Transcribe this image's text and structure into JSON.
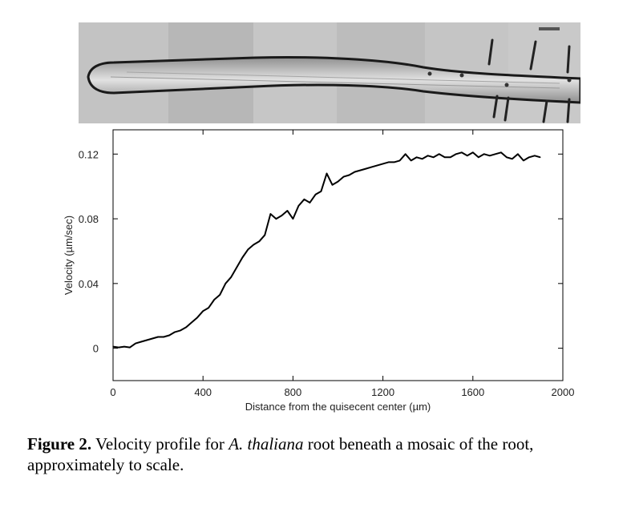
{
  "figure": {
    "label": "Figure 2.",
    "caption_parts": [
      {
        "text": " Velocity profile for ",
        "style": "normal"
      },
      {
        "text": "A. thaliana",
        "style": "italic"
      },
      {
        "text": " root beneath a mosaic of the root, approximately to scale.",
        "style": "normal"
      }
    ]
  },
  "chart_data": {
    "type": "line",
    "xlabel": "Distance from the quisecent center (µm)",
    "ylabel": "Velocity (µm/sec)",
    "xlim": [
      0,
      2000
    ],
    "ylim": [
      -0.02,
      0.135
    ],
    "xticks": [
      0,
      400,
      800,
      1200,
      1600,
      2000
    ],
    "xtick_labels": [
      "0",
      "400",
      "800",
      "1200",
      "1600",
      "2000"
    ],
    "yticks": [
      0,
      0.04,
      0.08,
      0.12
    ],
    "ytick_labels": [
      "0",
      "0.04",
      "0.08",
      "0.12"
    ],
    "grid": false,
    "series": [
      {
        "color": "#000000",
        "x": [
          0,
          25,
          50,
          75,
          100,
          125,
          150,
          175,
          200,
          225,
          250,
          275,
          300,
          325,
          350,
          375,
          400,
          425,
          450,
          475,
          500,
          525,
          550,
          575,
          600,
          625,
          650,
          675,
          700,
          725,
          750,
          775,
          800,
          825,
          850,
          875,
          900,
          925,
          950,
          975,
          1000,
          1025,
          1050,
          1075,
          1100,
          1125,
          1150,
          1175,
          1200,
          1225,
          1250,
          1275,
          1300,
          1325,
          1350,
          1375,
          1400,
          1425,
          1450,
          1475,
          1500,
          1525,
          1550,
          1575,
          1600,
          1625,
          1650,
          1675,
          1700,
          1725,
          1750,
          1775,
          1800,
          1825,
          1850,
          1875,
          1900
        ],
        "y": [
          0.001,
          0.0005,
          0.001,
          0.0005,
          0.003,
          0.004,
          0.005,
          0.006,
          0.007,
          0.007,
          0.008,
          0.01,
          0.011,
          0.013,
          0.016,
          0.019,
          0.023,
          0.025,
          0.03,
          0.033,
          0.04,
          0.044,
          0.05,
          0.056,
          0.061,
          0.064,
          0.066,
          0.07,
          0.083,
          0.08,
          0.082,
          0.085,
          0.08,
          0.088,
          0.092,
          0.09,
          0.095,
          0.097,
          0.108,
          0.101,
          0.103,
          0.106,
          0.107,
          0.109,
          0.11,
          0.111,
          0.112,
          0.113,
          0.114,
          0.115,
          0.115,
          0.116,
          0.12,
          0.116,
          0.118,
          0.117,
          0.119,
          0.118,
          0.12,
          0.118,
          0.118,
          0.12,
          0.121,
          0.119,
          0.121,
          0.118,
          0.12,
          0.119,
          0.12,
          0.121,
          0.118,
          0.117,
          0.12,
          0.116,
          0.118,
          0.119,
          0.118
        ]
      }
    ]
  }
}
